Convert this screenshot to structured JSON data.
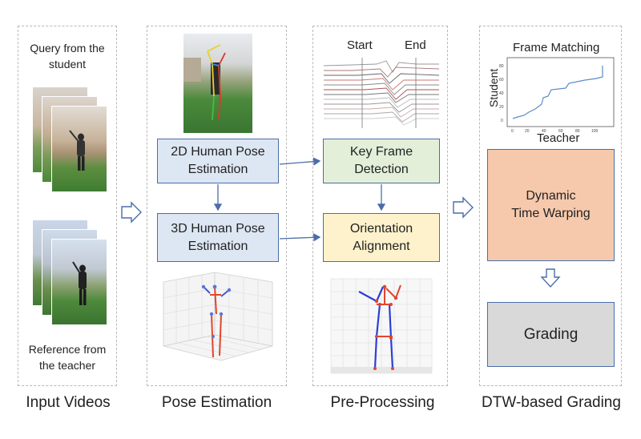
{
  "columns": {
    "input": {
      "title": "Input Videos",
      "query_caption": "Query from the\nstudent",
      "reference_caption": "Reference from\nthe teacher"
    },
    "pose": {
      "title": "Pose Estimation",
      "box_2d": "2D Human Pose\nEstimation",
      "box_3d": "3D Human Pose\nEstimation"
    },
    "pre": {
      "title": "Pre-Processing",
      "start_label": "Start",
      "end_label": "End",
      "box_keyframe": "Key Frame\nDetection",
      "box_orientation": "Orientation\nAlignment"
    },
    "dtw": {
      "title": "DTW-based Grading",
      "chart_title": "Frame Matching",
      "xlabel": "Teacher",
      "ylabel": "Student",
      "box_dtw": "Dynamic\nTime Warping",
      "box_grading": "Grading"
    }
  },
  "colors": {
    "box_border": "#4a6ea8",
    "blue_fill": "#dde6f3",
    "green_fill": "#e3efd9",
    "yellow_fill": "#fdf2cc",
    "orange_fill": "#f6c9ac",
    "gray_fill": "#d9d9d9",
    "arrow": "#4a6ea8"
  }
}
